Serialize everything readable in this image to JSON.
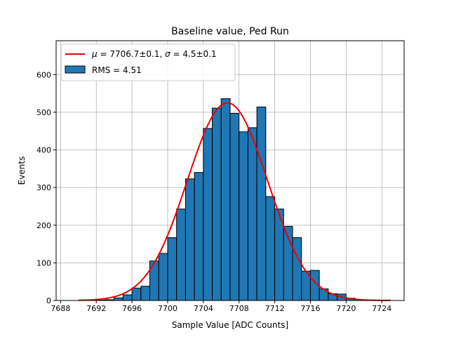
{
  "chart_data": {
    "type": "bar",
    "title": "Baseline value, Ped Run",
    "xlabel": "Sample Value [ADC Counts]",
    "ylabel": "Events",
    "xlim": [
      7687.5,
      7726.5
    ],
    "ylim": [
      0,
      690
    ],
    "xticks": [
      7688,
      7692,
      7696,
      7700,
      7704,
      7708,
      7712,
      7716,
      7720,
      7724
    ],
    "yticks": [
      0,
      100,
      200,
      300,
      400,
      500,
      600
    ],
    "grid": true,
    "legend_position": "top-left",
    "histogram": {
      "name": "RMS = 4.51",
      "color": "#1f77b4",
      "bin_edges": [
        7690,
        7691,
        7692,
        7693,
        7694,
        7695,
        7696,
        7697,
        7698,
        7699,
        7700,
        7701,
        7702,
        7703,
        7704,
        7705,
        7706,
        7707,
        7708,
        7709,
        7710,
        7711,
        7712,
        7713,
        7714,
        7715,
        7716,
        7717,
        7718,
        7719,
        7720,
        7721,
        7722,
        7723,
        7724,
        7725
      ],
      "counts": [
        0,
        0,
        1,
        2,
        7,
        15,
        33,
        38,
        105,
        125,
        167,
        243,
        323,
        340,
        457,
        511,
        536,
        497,
        448,
        459,
        514,
        276,
        243,
        197,
        167,
        78,
        80,
        31,
        18,
        17,
        6,
        2,
        0,
        0,
        0
      ]
    },
    "fit": {
      "name_parts": [
        "μ",
        " = 7706.7±0.1, ",
        "σ",
        " = 4.5±0.1"
      ],
      "color": "#ee0000",
      "mu": 7706.7,
      "sigma": 4.5,
      "peak": 525,
      "x_range": [
        7690,
        7725
      ]
    }
  }
}
